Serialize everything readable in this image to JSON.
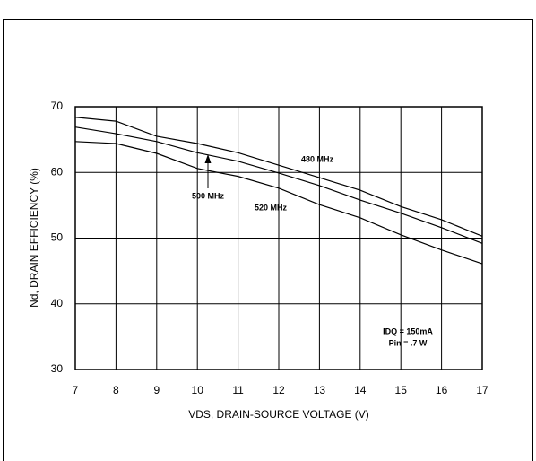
{
  "chart_data": {
    "type": "line",
    "xlabel": "VDS, DRAIN-SOURCE VOLTAGE (V)",
    "ylabel": "Nd, DRAIN EFFICIENCY  (%)",
    "x": [
      7,
      8,
      9,
      10,
      11,
      12,
      13,
      14,
      15,
      16,
      17
    ],
    "series": [
      {
        "name": "480 MHz",
        "color": "#000000",
        "values": [
          68.4,
          67.8,
          65.5,
          64.4,
          63.0,
          61.1,
          59.2,
          57.3,
          54.8,
          52.8,
          50.3
        ]
      },
      {
        "name": "500 MHz",
        "color": "#000000",
        "values": [
          66.9,
          65.9,
          64.7,
          63.0,
          61.7,
          59.9,
          58.0,
          55.8,
          53.8,
          51.6,
          49.2
        ]
      },
      {
        "name": "520 MHz",
        "color": "#000000",
        "values": [
          64.7,
          64.4,
          62.9,
          60.6,
          59.4,
          57.6,
          55.1,
          53.1,
          50.5,
          48.2,
          46.1
        ]
      }
    ],
    "annotations": [
      "IDQ = 150mA",
      "Pin = .7 W"
    ],
    "xlim": [
      7,
      17
    ],
    "xticks": [
      7,
      8,
      9,
      10,
      11,
      12,
      13,
      14,
      15,
      16,
      17
    ],
    "ylim": [
      30,
      70
    ],
    "yticks": [
      30,
      40,
      50,
      60,
      70
    ],
    "grid": true
  }
}
